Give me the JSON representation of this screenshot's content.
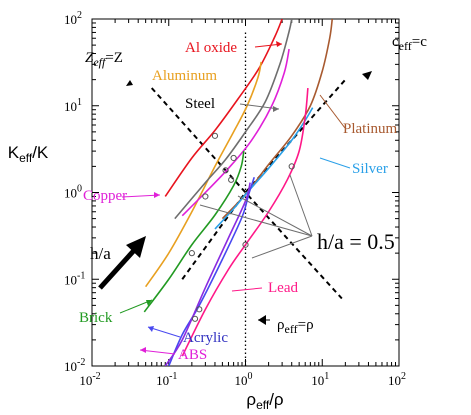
{
  "chart_data": {
    "type": "line",
    "xlabel": {
      "main": "ρ",
      "sub": "eff",
      "rest": "/ρ"
    },
    "ylabel": {
      "main": "K",
      "sub": "eff",
      "rest": "/K"
    },
    "xscale": "log",
    "yscale": "log",
    "xlim": [
      0.01,
      100
    ],
    "ylim": [
      0.01,
      100
    ],
    "xticks": [
      {
        "base": "10",
        "exp": "-2"
      },
      {
        "base": "10",
        "exp": "-1"
      },
      {
        "base": "10",
        "exp": "0"
      },
      {
        "base": "10",
        "exp": "1"
      },
      {
        "base": "10",
        "exp": "2"
      }
    ],
    "yticks": [
      {
        "base": "10",
        "exp": "-2"
      },
      {
        "base": "10",
        "exp": "-1"
      },
      {
        "base": "10",
        "exp": "0"
      },
      {
        "base": "10",
        "exp": "1"
      },
      {
        "base": "10",
        "exp": "2"
      }
    ],
    "grid": false,
    "series": [
      {
        "name": "Al oxide",
        "color": "#e8141e",
        "points": [
          [
            0.09,
            0.9
          ],
          [
            0.2,
            2.5
          ],
          [
            0.4,
            5.2
          ],
          [
            0.8,
            12
          ],
          [
            1.5,
            27
          ],
          [
            2.4,
            62
          ],
          [
            3.0,
            100
          ]
        ]
      },
      {
        "name": "Aluminum",
        "color": "#e8a020",
        "points": [
          [
            0.05,
            0.082
          ],
          [
            0.1,
            0.2
          ],
          [
            0.2,
            0.6
          ],
          [
            0.4,
            2.0
          ],
          [
            0.7,
            5.0
          ],
          [
            1.05,
            10
          ],
          [
            1.45,
            21
          ],
          [
            1.6,
            32
          ]
        ]
      },
      {
        "name": "Steel",
        "color": "#6e6e6e",
        "points": [
          [
            0.12,
            0.5
          ],
          [
            0.3,
            1.3
          ],
          [
            0.55,
            2.4
          ],
          [
            1.0,
            5.0
          ],
          [
            1.8,
            11
          ],
          [
            2.8,
            30
          ],
          [
            3.7,
            72
          ],
          [
            4.0,
            100
          ]
        ]
      },
      {
        "name": "Copper",
        "color": "#e020d8",
        "points": [
          [
            0.15,
            0.54
          ],
          [
            0.3,
            1.0
          ],
          [
            0.6,
            1.9
          ],
          [
            1.2,
            4.0
          ],
          [
            2.2,
            10
          ],
          [
            3.2,
            24
          ],
          [
            3.7,
            45
          ]
        ]
      },
      {
        "name": "Platinum",
        "color": "#a85a30",
        "points": [
          [
            0.5,
            0.5
          ],
          [
            1.0,
            0.95
          ],
          [
            2.0,
            2.1
          ],
          [
            4.0,
            4.5
          ],
          [
            7.0,
            10
          ],
          [
            10.0,
            25
          ],
          [
            12.5,
            60
          ],
          [
            13.5,
            100
          ]
        ]
      },
      {
        "name": "Silver",
        "color": "#2aa0e8",
        "points": [
          [
            0.4,
            0.38
          ],
          [
            0.7,
            0.65
          ],
          [
            1.0,
            0.95
          ],
          [
            2.0,
            1.9
          ],
          [
            4.0,
            4.0
          ],
          [
            6.0,
            6.8
          ],
          [
            7.5,
            9.5
          ]
        ]
      },
      {
        "name": "Brick",
        "color": "#229a22",
        "points": [
          [
            0.048,
            0.042
          ],
          [
            0.1,
            0.1
          ],
          [
            0.2,
            0.25
          ],
          [
            0.4,
            0.55
          ],
          [
            0.7,
            1.2
          ],
          [
            0.88,
            2.0
          ],
          [
            0.95,
            3.0
          ]
        ]
      },
      {
        "name": "Lead",
        "color": "#ff1888",
        "points": [
          [
            0.15,
            0.013
          ],
          [
            0.3,
            0.045
          ],
          [
            0.6,
            0.13
          ],
          [
            1.0,
            0.25
          ],
          [
            2.0,
            0.6
          ],
          [
            3.5,
            1.4
          ],
          [
            5.0,
            3.0
          ],
          [
            6.0,
            7.5
          ],
          [
            6.5,
            16
          ]
        ]
      },
      {
        "name": "Acrylic",
        "color": "#4848f0",
        "points": [
          [
            0.1,
            0.01
          ],
          [
            0.15,
            0.023
          ],
          [
            0.25,
            0.05
          ],
          [
            0.5,
            0.17
          ],
          [
            0.9,
            0.52
          ],
          [
            1.1,
            0.95
          ],
          [
            1.3,
            1.5
          ]
        ]
      },
      {
        "name": "ABS",
        "color": "#8a2be2",
        "points": [
          [
            0.09,
            0.01
          ],
          [
            0.15,
            0.02
          ],
          [
            0.3,
            0.08
          ],
          [
            0.6,
            0.3
          ],
          [
            1.0,
            0.8
          ],
          [
            1.15,
            1.3
          ]
        ]
      }
    ],
    "reference_lines": [
      {
        "name": "c_eff=c",
        "style": "dashed",
        "points": [
          [
            0.15,
            0.1
          ],
          [
            1.0,
            1.0
          ],
          [
            20.0,
            20.0
          ]
        ]
      },
      {
        "name": "Z_eff=Z",
        "style": "dashed",
        "points": [
          [
            0.06,
            16
          ],
          [
            1.0,
            1.0
          ],
          [
            18.0,
            0.06
          ]
        ]
      },
      {
        "name": "ρ_eff=ρ",
        "style": "dotted",
        "points": [
          [
            1.0,
            0.01
          ],
          [
            1.0,
            70
          ]
        ]
      }
    ],
    "markers_h_over_a_0_5": [
      [
        0.4,
        4.5
      ],
      [
        0.7,
        2.5
      ],
      [
        0.55,
        1.8
      ],
      [
        1.0,
        0.25
      ],
      [
        4.0,
        2.0
      ],
      [
        0.3,
        0.9
      ],
      [
        0.65,
        1.4
      ],
      [
        0.2,
        0.2
      ],
      [
        0.22,
        0.035
      ],
      [
        0.25,
        0.045
      ]
    ],
    "annotations": {
      "h_over_a": "h/a",
      "h_over_a_value": "h/a = 0.5",
      "z_eq": {
        "main": "Z",
        "sub": "eff",
        "rest": "=Z"
      },
      "c_eq": {
        "main": "c",
        "sub": "eff",
        "rest": "=c"
      },
      "rho_eq": {
        "main": "ρ",
        "sub": "eff",
        "rest": "=ρ"
      }
    }
  }
}
